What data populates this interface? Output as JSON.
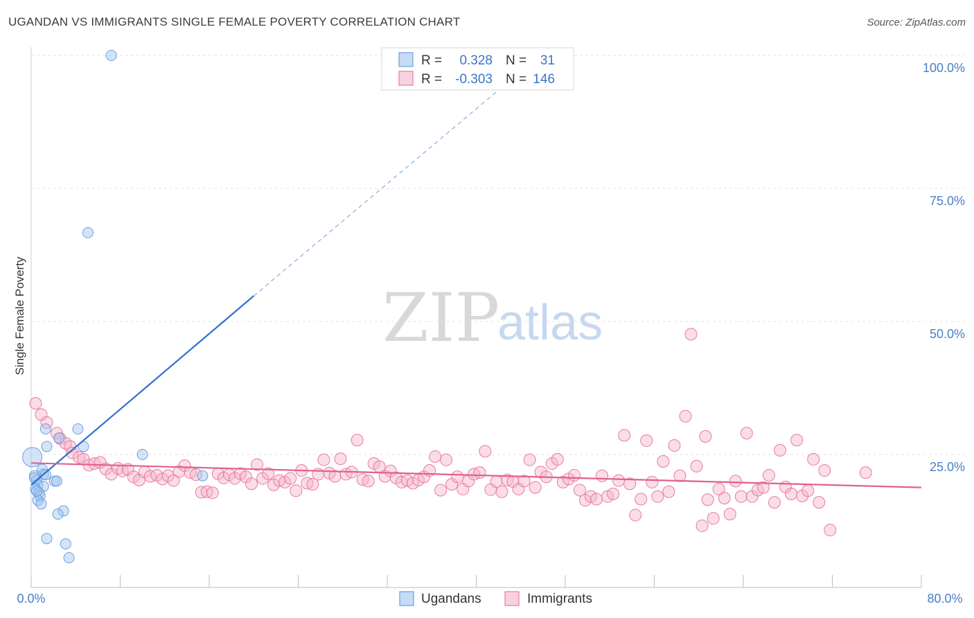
{
  "title": "UGANDAN VS IMMIGRANTS SINGLE FEMALE POVERTY CORRELATION CHART",
  "source": "Source: ZipAtlas.com",
  "colors": {
    "ugandans": "#6a9fe0",
    "ugandans_fill": "rgba(160,195,240,0.45)",
    "immigrants": "#e87aa0",
    "immigrants_fill": "rgba(245,180,205,0.45)",
    "ugandans_line": "#2f6fcf",
    "immigrants_line": "#e0608f",
    "axis_label": "#4a7fc4"
  },
  "legend": {
    "rows": [
      {
        "r_label": "R =",
        "r_value": "0.328",
        "n_label": "N =",
        "n_value": "31"
      },
      {
        "r_label": "R =",
        "r_value": "-0.303",
        "n_label": "N =",
        "n_value": "146"
      }
    ],
    "bottom": [
      "Ugandans",
      "Immigrants"
    ]
  },
  "watermark": {
    "zip": "ZIP",
    "atlas": "atlas"
  },
  "chart_data": {
    "type": "scatter",
    "title": "UGANDAN VS IMMIGRANTS SINGLE FEMALE POVERTY CORRELATION CHART",
    "xlabel": "",
    "ylabel": "Single Female Poverty",
    "xlim": [
      0,
      80
    ],
    "ylim": [
      0,
      100
    ],
    "x_tick_labels": [
      "0.0%",
      "80.0%"
    ],
    "y_tick_labels": [
      "25.0%",
      "50.0%",
      "75.0%",
      "100.0%"
    ],
    "y_ticks": [
      25,
      50,
      75,
      100
    ],
    "series": [
      {
        "name": "Ugandans",
        "r": 0.328,
        "n": 31,
        "trend": {
          "x": [
            0,
            20
          ],
          "y": [
            19.3,
            54.8
          ],
          "dashed_to": [
            44,
            97
          ]
        },
        "points": [
          [
            7.2,
            100.0
          ],
          [
            5.1,
            66.7
          ],
          [
            1.3,
            29.8
          ],
          [
            4.2,
            29.8
          ],
          [
            2.5,
            28.1
          ],
          [
            1.4,
            26.5
          ],
          [
            4.7,
            26.5
          ],
          [
            10.0,
            25.0
          ],
          [
            0.1,
            24.5
          ],
          [
            1.0,
            22.2
          ],
          [
            0.3,
            21.0
          ],
          [
            1.1,
            21.3
          ],
          [
            2.1,
            20.0
          ],
          [
            2.3,
            20.0
          ],
          [
            15.4,
            21.0
          ],
          [
            0.5,
            20.2
          ],
          [
            0.6,
            19.3
          ],
          [
            1.1,
            19.0
          ],
          [
            0.4,
            18.5
          ],
          [
            0.7,
            17.8
          ],
          [
            0.8,
            17.2
          ],
          [
            0.6,
            16.4
          ],
          [
            0.9,
            15.7
          ],
          [
            2.9,
            14.4
          ],
          [
            2.4,
            13.8
          ],
          [
            1.4,
            9.2
          ],
          [
            3.1,
            8.2
          ],
          [
            3.4,
            5.6
          ],
          [
            0.3,
            20.6
          ],
          [
            0.5,
            18.1
          ],
          [
            1.3,
            21.2
          ]
        ]
      },
      {
        "name": "Immigrants",
        "r": -0.303,
        "n": 146,
        "trend": {
          "x": [
            0,
            80
          ],
          "y": [
            23.4,
            18.8
          ]
        },
        "points": [
          [
            0.4,
            34.6
          ],
          [
            0.9,
            32.5
          ],
          [
            1.4,
            31.0
          ],
          [
            2.3,
            29.0
          ],
          [
            2.6,
            28.0
          ],
          [
            3.1,
            27.1
          ],
          [
            3.5,
            26.5
          ],
          [
            3.7,
            25.3
          ],
          [
            4.3,
            24.5
          ],
          [
            4.7,
            24.1
          ],
          [
            5.2,
            23.0
          ],
          [
            5.7,
            23.3
          ],
          [
            6.2,
            23.5
          ],
          [
            6.7,
            22.3
          ],
          [
            7.2,
            21.3
          ],
          [
            7.8,
            22.4
          ],
          [
            8.2,
            21.9
          ],
          [
            8.7,
            22.2
          ],
          [
            9.2,
            20.8
          ],
          [
            9.7,
            20.2
          ],
          [
            10.2,
            21.7
          ],
          [
            10.7,
            20.9
          ],
          [
            11.3,
            21.1
          ],
          [
            11.8,
            20.4
          ],
          [
            12.3,
            21.0
          ],
          [
            12.8,
            20.1
          ],
          [
            13.3,
            21.8
          ],
          [
            13.8,
            22.9
          ],
          [
            14.3,
            21.6
          ],
          [
            14.8,
            21.2
          ],
          [
            15.3,
            17.9
          ],
          [
            15.8,
            18.0
          ],
          [
            16.3,
            17.8
          ],
          [
            16.8,
            21.4
          ],
          [
            17.3,
            20.6
          ],
          [
            17.8,
            21.2
          ],
          [
            18.3,
            20.5
          ],
          [
            18.8,
            21.4
          ],
          [
            19.3,
            20.8
          ],
          [
            19.8,
            19.5
          ],
          [
            20.3,
            23.1
          ],
          [
            20.8,
            20.5
          ],
          [
            21.3,
            21.4
          ],
          [
            21.8,
            19.3
          ],
          [
            22.3,
            20.1
          ],
          [
            22.8,
            19.8
          ],
          [
            23.3,
            20.5
          ],
          [
            23.8,
            18.2
          ],
          [
            24.3,
            22.0
          ],
          [
            24.8,
            19.6
          ],
          [
            25.3,
            19.4
          ],
          [
            25.8,
            21.3
          ],
          [
            26.3,
            24.0
          ],
          [
            26.8,
            21.5
          ],
          [
            27.3,
            20.9
          ],
          [
            27.8,
            24.2
          ],
          [
            28.3,
            21.3
          ],
          [
            28.8,
            21.7
          ],
          [
            29.3,
            27.7
          ],
          [
            29.8,
            20.3
          ],
          [
            30.3,
            20.0
          ],
          [
            30.8,
            23.3
          ],
          [
            31.3,
            22.7
          ],
          [
            31.8,
            20.9
          ],
          [
            32.3,
            21.9
          ],
          [
            32.8,
            20.6
          ],
          [
            33.3,
            19.8
          ],
          [
            33.8,
            20.1
          ],
          [
            34.3,
            19.6
          ],
          [
            34.8,
            20.2
          ],
          [
            35.3,
            20.8
          ],
          [
            35.8,
            22.0
          ],
          [
            36.3,
            24.6
          ],
          [
            36.8,
            18.3
          ],
          [
            37.3,
            24.0
          ],
          [
            37.8,
            19.4
          ],
          [
            38.3,
            20.8
          ],
          [
            38.8,
            18.5
          ],
          [
            39.3,
            20.0
          ],
          [
            39.8,
            21.3
          ],
          [
            40.3,
            21.6
          ],
          [
            40.8,
            25.6
          ],
          [
            41.3,
            18.4
          ],
          [
            41.8,
            19.9
          ],
          [
            42.3,
            18.0
          ],
          [
            42.8,
            20.2
          ],
          [
            43.3,
            19.9
          ],
          [
            43.8,
            18.5
          ],
          [
            44.3,
            20.0
          ],
          [
            44.8,
            24.0
          ],
          [
            45.3,
            18.8
          ],
          [
            45.8,
            21.7
          ],
          [
            46.3,
            20.8
          ],
          [
            46.8,
            23.3
          ],
          [
            47.3,
            24.1
          ],
          [
            47.8,
            19.8
          ],
          [
            48.3,
            20.4
          ],
          [
            48.8,
            21.1
          ],
          [
            49.3,
            18.3
          ],
          [
            49.8,
            16.4
          ],
          [
            50.3,
            17.1
          ],
          [
            50.8,
            16.6
          ],
          [
            51.3,
            21.0
          ],
          [
            51.8,
            17.1
          ],
          [
            52.3,
            17.6
          ],
          [
            52.8,
            20.1
          ],
          [
            53.3,
            28.6
          ],
          [
            53.8,
            19.5
          ],
          [
            54.3,
            13.6
          ],
          [
            54.8,
            16.6
          ],
          [
            55.3,
            27.6
          ],
          [
            55.8,
            19.8
          ],
          [
            56.3,
            17.1
          ],
          [
            56.8,
            23.7
          ],
          [
            57.3,
            18.0
          ],
          [
            57.8,
            26.7
          ],
          [
            58.3,
            21.0
          ],
          [
            58.8,
            32.2
          ],
          [
            59.3,
            47.6
          ],
          [
            59.8,
            22.8
          ],
          [
            60.3,
            11.6
          ],
          [
            60.8,
            16.5
          ],
          [
            61.3,
            13.0
          ],
          [
            61.8,
            18.5
          ],
          [
            62.3,
            16.8
          ],
          [
            62.8,
            13.8
          ],
          [
            63.3,
            20.0
          ],
          [
            63.8,
            17.1
          ],
          [
            64.3,
            29.0
          ],
          [
            64.8,
            17.1
          ],
          [
            65.3,
            18.3
          ],
          [
            65.8,
            18.8
          ],
          [
            66.3,
            21.1
          ],
          [
            66.8,
            16.0
          ],
          [
            67.3,
            25.8
          ],
          [
            67.8,
            18.9
          ],
          [
            68.3,
            17.6
          ],
          [
            68.8,
            27.7
          ],
          [
            69.3,
            17.2
          ],
          [
            69.8,
            18.2
          ],
          [
            70.3,
            24.1
          ],
          [
            70.8,
            16.0
          ],
          [
            71.3,
            22.0
          ],
          [
            71.8,
            10.8
          ],
          [
            75.0,
            21.6
          ],
          [
            60.6,
            28.4
          ]
        ]
      }
    ]
  }
}
